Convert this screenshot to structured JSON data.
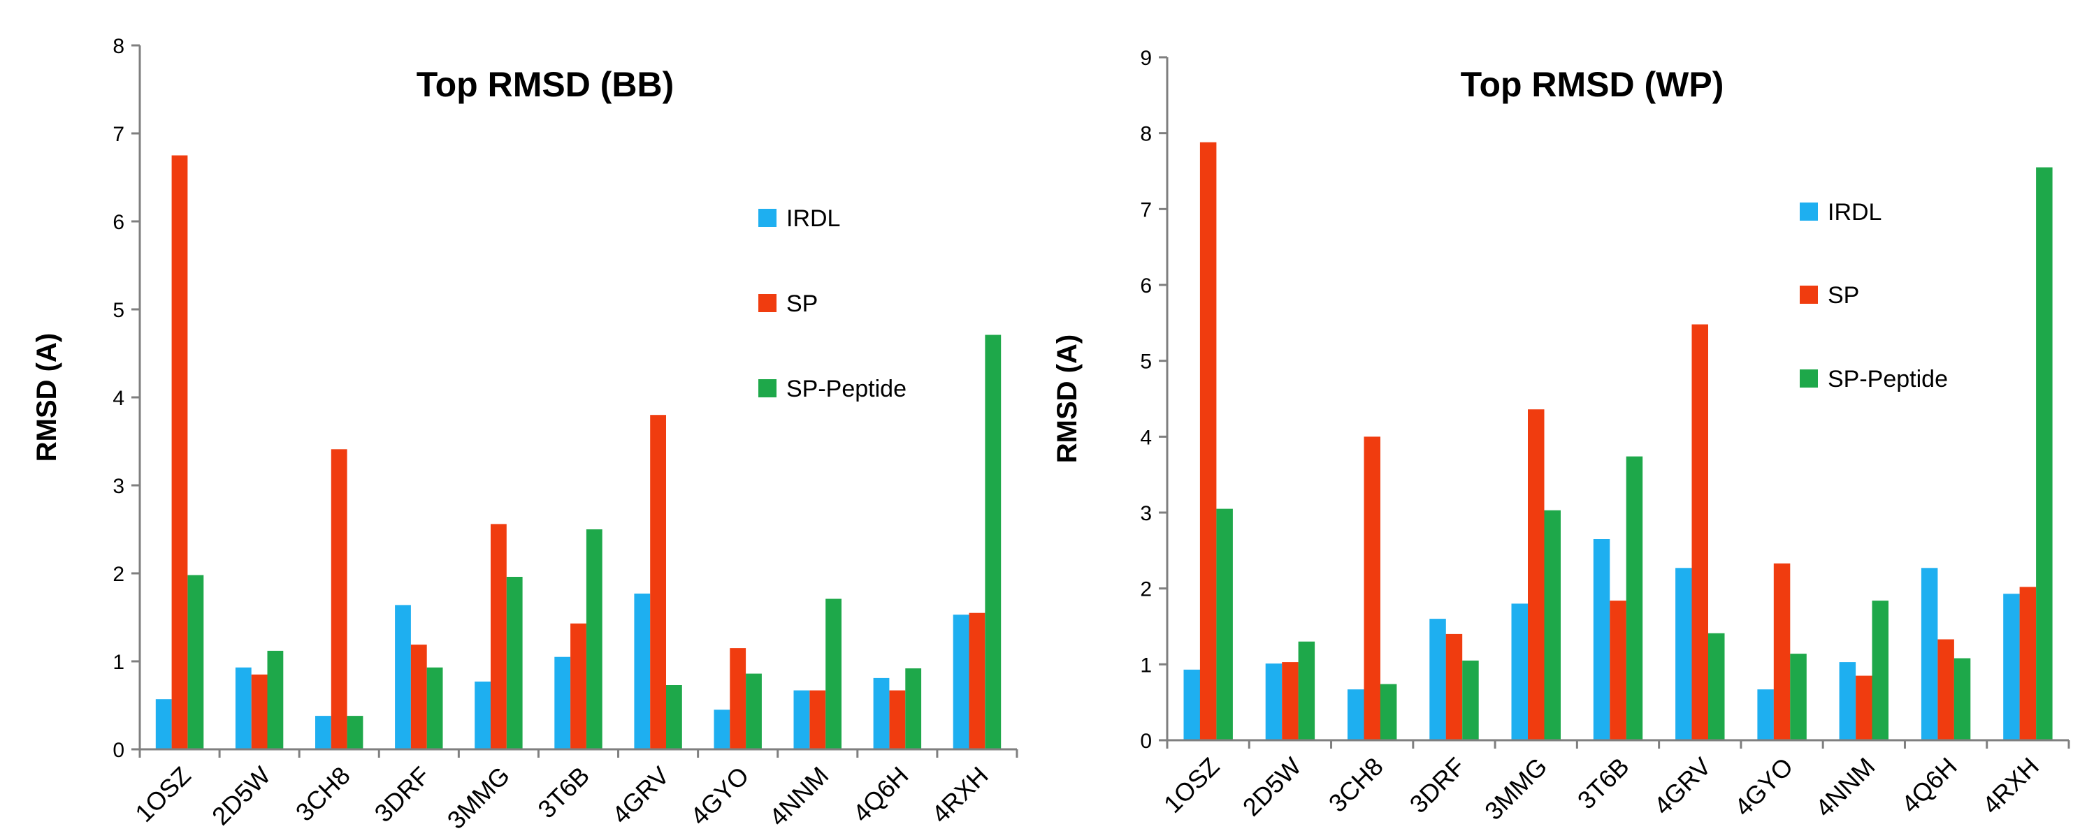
{
  "chart_data": [
    {
      "type": "bar",
      "title": "Top RMSD (BB)",
      "xlabel": "",
      "ylabel": "RMSD (A)",
      "ylim": [
        0,
        8
      ],
      "yticks": [
        "0",
        "1",
        "2",
        "3",
        "4",
        "5",
        "6",
        "7",
        "8"
      ],
      "grid": false,
      "legend_position": "right",
      "categories": [
        "1OSZ",
        "2D5W",
        "3CH8",
        "3DRF",
        "3MMG",
        "3T6B",
        "4GRV",
        "4GYO",
        "4NNM",
        "4Q6H",
        "4RXH"
      ],
      "series": [
        {
          "name": "IRDL",
          "color": "#1eaff0",
          "values": [
            0.57,
            0.93,
            0.38,
            1.64,
            0.77,
            1.05,
            1.77,
            0.45,
            0.67,
            0.81,
            1.53
          ]
        },
        {
          "name": "SP",
          "color": "#f03c0f",
          "values": [
            6.75,
            0.85,
            3.41,
            1.19,
            2.56,
            1.43,
            3.8,
            1.15,
            0.67,
            0.67,
            1.55
          ]
        },
        {
          "name": "SP-Peptide",
          "color": "#1ea84a",
          "values": [
            1.98,
            1.12,
            0.38,
            0.93,
            1.96,
            2.5,
            0.73,
            0.86,
            1.71,
            0.92,
            4.71
          ]
        }
      ]
    },
    {
      "type": "bar",
      "title": "Top RMSD (WP)",
      "xlabel": "",
      "ylabel": "RMSD (A)",
      "ylim": [
        0,
        9
      ],
      "yticks": [
        "0",
        "1",
        "2",
        "3",
        "4",
        "5",
        "6",
        "7",
        "8",
        "9"
      ],
      "grid": false,
      "legend_position": "right",
      "categories": [
        "1OSZ",
        "2D5W",
        "3CH8",
        "3DRF",
        "3MMG",
        "3T6B",
        "4GRV",
        "4GYO",
        "4NNM",
        "4Q6H",
        "4RXH"
      ],
      "series": [
        {
          "name": "IRDL",
          "color": "#1eaff0",
          "values": [
            0.93,
            1.01,
            0.67,
            1.6,
            1.8,
            2.65,
            2.27,
            0.67,
            1.03,
            2.27,
            1.93
          ]
        },
        {
          "name": "SP",
          "color": "#f03c0f",
          "values": [
            7.88,
            1.03,
            4.0,
            1.4,
            4.36,
            1.84,
            5.48,
            2.33,
            0.85,
            1.33,
            2.02
          ]
        },
        {
          "name": "SP-Peptide",
          "color": "#1ea84a",
          "values": [
            3.05,
            1.3,
            0.74,
            1.05,
            3.03,
            3.74,
            1.41,
            1.14,
            1.84,
            1.08,
            7.55
          ]
        }
      ]
    }
  ]
}
